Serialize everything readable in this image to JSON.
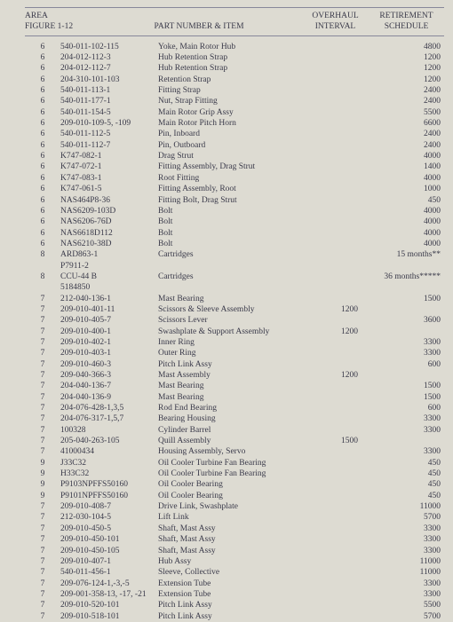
{
  "header": {
    "area": "AREA\nFIGURE 1-12",
    "pn": "PART NUMBER & ITEM",
    "oi": "OVERHAUL\nINTERVAL",
    "rs": "RETIREMENT\nSCHEDULE"
  },
  "rows": [
    {
      "area": "6",
      "pn": "540-011-102-115",
      "item": "Yoke, Main Rotor Hub",
      "oi": "",
      "rs": "4800"
    },
    {
      "area": "6",
      "pn": "204-012-112-3",
      "item": "Hub Retention Strap",
      "oi": "",
      "rs": "1200"
    },
    {
      "area": "6",
      "pn": "204-012-112-7",
      "item": "Hub Retention Strap",
      "oi": "",
      "rs": "1200"
    },
    {
      "area": "6",
      "pn": "204-310-101-103",
      "item": "Retention Strap",
      "oi": "",
      "rs": "1200"
    },
    {
      "area": "6",
      "pn": "540-011-113-1",
      "item": "Fitting Strap",
      "oi": "",
      "rs": "2400"
    },
    {
      "area": "6",
      "pn": "540-011-177-1",
      "item": "Nut, Strap Fitting",
      "oi": "",
      "rs": "2400"
    },
    {
      "area": "6",
      "pn": "540-011-154-5",
      "item": "Main Rotor Grip Assy",
      "oi": "",
      "rs": "5500"
    },
    {
      "area": "6",
      "pn": "209-010-109-5, -109",
      "item": "Main Rotor Pitch Horn",
      "oi": "",
      "rs": "6600"
    },
    {
      "area": "6",
      "pn": "540-011-112-5",
      "item": "Pin, Inboard",
      "oi": "",
      "rs": "2400"
    },
    {
      "area": "6",
      "pn": "540-011-112-7",
      "item": "Pin, Outboard",
      "oi": "",
      "rs": "2400"
    },
    {
      "area": "6",
      "pn": "K747-082-1",
      "item": "Drag Strut",
      "oi": "",
      "rs": "4000"
    },
    {
      "area": "6",
      "pn": "K747-072-1",
      "item": "Fitting Assembly, Drag Strut",
      "oi": "",
      "rs": "1400"
    },
    {
      "area": "6",
      "pn": "K747-083-1",
      "item": "Root Fitting",
      "oi": "",
      "rs": "4000"
    },
    {
      "area": "6",
      "pn": "K747-061-5",
      "item": "Fitting Assembly, Root",
      "oi": "",
      "rs": "1000"
    },
    {
      "area": "6",
      "pn": "NAS464P8-36",
      "item": "Fitting Bolt, Drag Strut",
      "oi": "",
      "rs": "450"
    },
    {
      "area": "6",
      "pn": "NAS6209-103D",
      "item": "Bolt",
      "oi": "",
      "rs": "4000"
    },
    {
      "area": "6",
      "pn": "NAS6206-76D",
      "item": "Bolt",
      "oi": "",
      "rs": "4000"
    },
    {
      "area": "6",
      "pn": "NAS6618D112",
      "item": "Bolt",
      "oi": "",
      "rs": "4000"
    },
    {
      "area": "6",
      "pn": "NAS6210-38D",
      "item": "Bolt",
      "oi": "",
      "rs": "4000"
    },
    {
      "area": "8",
      "pn": "ARD863-1",
      "item": "Cartridges",
      "oi": "",
      "rs": "15 months**"
    },
    {
      "area": "",
      "pn": "P7911-2",
      "item": "",
      "oi": "",
      "rs": ""
    },
    {
      "area": "8",
      "pn": "CCU-44 B",
      "item": "Cartridges",
      "oi": "",
      "rs": "36 months*****"
    },
    {
      "area": "",
      "pn": "5184850",
      "item": "",
      "oi": "",
      "rs": ""
    },
    {
      "area": "7",
      "pn": "212-040-136-1",
      "item": "Mast Bearing",
      "oi": "",
      "rs": "1500"
    },
    {
      "area": "7",
      "pn": "209-010-401-11",
      "item": "Scissors & Sleeve Assembly",
      "oi": "1200",
      "rs": ""
    },
    {
      "area": "7",
      "pn": "209-010-405-7",
      "item": "Scissors Lever",
      "oi": "",
      "rs": "3600"
    },
    {
      "area": "7",
      "pn": "209-010-400-1",
      "item": "Swashplate & Support Assembly",
      "oi": "1200",
      "rs": ""
    },
    {
      "area": "7",
      "pn": "209-010-402-1",
      "item": "Inner Ring",
      "oi": "",
      "rs": "3300"
    },
    {
      "area": "7",
      "pn": "209-010-403-1",
      "item": "Outer Ring",
      "oi": "",
      "rs": "3300"
    },
    {
      "area": "7",
      "pn": "209-010-460-3",
      "item": "Pitch Link Assy",
      "oi": "",
      "rs": "600"
    },
    {
      "area": "7",
      "pn": "209-040-366-3",
      "item": "Mast Assembly",
      "oi": "1200",
      "rs": ""
    },
    {
      "area": "7",
      "pn": "204-040-136-7",
      "item": "Mast Bearing",
      "oi": "",
      "rs": "1500"
    },
    {
      "area": "7",
      "pn": "204-040-136-9",
      "item": "Mast Bearing",
      "oi": "",
      "rs": "1500"
    },
    {
      "area": "7",
      "pn": "204-076-428-1,3,5",
      "item": "Rod End Bearing",
      "oi": "",
      "rs": "600"
    },
    {
      "area": "7",
      "pn": "204-076-317-1,5,7",
      "item": "Bearing Housing",
      "oi": "",
      "rs": "3300"
    },
    {
      "area": "7",
      "pn": "100328",
      "item": "Cylinder Barrel",
      "oi": "",
      "rs": "3300"
    },
    {
      "area": "7",
      "pn": "205-040-263-105",
      "item": "Quill Assembly",
      "oi": "1500",
      "rs": ""
    },
    {
      "area": "7",
      "pn": "41000434",
      "item": "Housing Assembly, Servo",
      "oi": "",
      "rs": "3300"
    },
    {
      "area": "9",
      "pn": "J33C32",
      "item": "Oil Cooler Turbine Fan Bearing",
      "oi": "",
      "rs": "450"
    },
    {
      "area": "9",
      "pn": "H33C32",
      "item": "Oil Cooler Turbine Fan Bearing",
      "oi": "",
      "rs": "450"
    },
    {
      "area": "9",
      "pn": "P9103NPFFS50160",
      "item": "Oil Cooler Bearing",
      "oi": "",
      "rs": "450"
    },
    {
      "area": "9",
      "pn": "P9101NPFFS50160",
      "item": "Oil Cooler Bearing",
      "oi": "",
      "rs": "450"
    },
    {
      "area": "7",
      "pn": "209-010-408-7",
      "item": "Drive Link, Swashplate",
      "oi": "",
      "rs": "11000"
    },
    {
      "area": "7",
      "pn": "212-030-104-5",
      "item": "Lift Link",
      "oi": "",
      "rs": "5700"
    },
    {
      "area": "7",
      "pn": "209-010-450-5",
      "item": "Shaft, Mast Assy",
      "oi": "",
      "rs": "3300"
    },
    {
      "area": "7",
      "pn": "209-010-450-101",
      "item": "Shaft, Mast Assy",
      "oi": "",
      "rs": "3300"
    },
    {
      "area": "7",
      "pn": "209-010-450-105",
      "item": "Shaft, Mast Assy",
      "oi": "",
      "rs": "3300"
    },
    {
      "area": "7",
      "pn": "209-010-407-1",
      "item": "Hub Assy",
      "oi": "",
      "rs": "11000"
    },
    {
      "area": "7",
      "pn": "540-011-456-1",
      "item": "Sleeve, Collective",
      "oi": "",
      "rs": "11000"
    },
    {
      "area": "7",
      "pn": "209-076-124-1,-3,-5",
      "item": "Extension Tube",
      "oi": "",
      "rs": "3300"
    },
    {
      "area": "7",
      "pn": "209-001-358-13, -17, -21",
      "item": "Extension Tube",
      "oi": "",
      "rs": "3300"
    },
    {
      "area": "7",
      "pn": "209-010-520-101",
      "item": "Pitch Link Assy",
      "oi": "",
      "rs": "5500"
    },
    {
      "area": "7",
      "pn": "209-010-518-101",
      "item": "Pitch Link Assy",
      "oi": "",
      "rs": "5700"
    }
  ]
}
